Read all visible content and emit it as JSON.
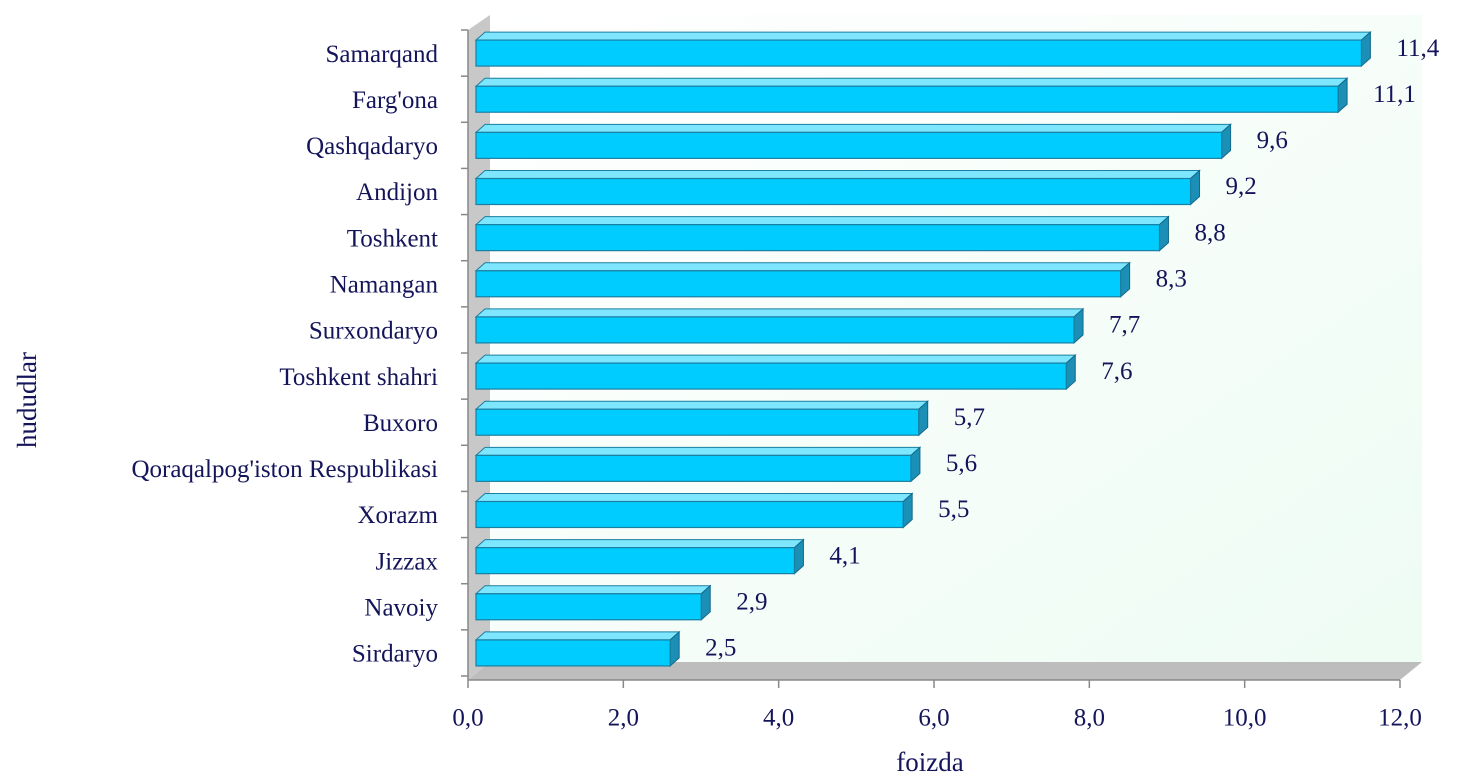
{
  "chart_data": {
    "type": "bar",
    "orientation": "horizontal",
    "y_axis_label": "hududlar",
    "x_axis_label": "foizda",
    "categories": [
      "Samarqand",
      "Farg'ona",
      "Qashqadaryo",
      "Andijon",
      "Toshkent",
      "Namangan",
      "Surxondaryo",
      "Toshkent shahri",
      "Buxoro",
      "Qoraqalpog'iston Respublikasi",
      "Xorazm",
      "Jizzax",
      "Navoiy",
      "Sirdaryo"
    ],
    "values": [
      11.4,
      11.1,
      9.6,
      9.2,
      8.8,
      8.3,
      7.7,
      7.6,
      5.7,
      5.6,
      5.5,
      4.1,
      2.9,
      2.5
    ],
    "value_labels": [
      "11,4",
      "11,1",
      "9,6",
      "9,2",
      "8,8",
      "8,3",
      "7,7",
      "7,6",
      "5,7",
      "5,6",
      "5,5",
      "4,1",
      "2,9",
      "2,5"
    ],
    "color": "#00ccff",
    "xlim": [
      0,
      12
    ],
    "xticks": [
      {
        "value": 0,
        "label": "0,0"
      },
      {
        "value": 2,
        "label": "2,0"
      },
      {
        "value": 4,
        "label": "4,0"
      },
      {
        "value": 6,
        "label": "6,0"
      },
      {
        "value": 8,
        "label": "8,0"
      },
      {
        "value": 10,
        "label": "10,0"
      },
      {
        "value": 12,
        "label": "12,0"
      }
    ],
    "grid": false
  }
}
